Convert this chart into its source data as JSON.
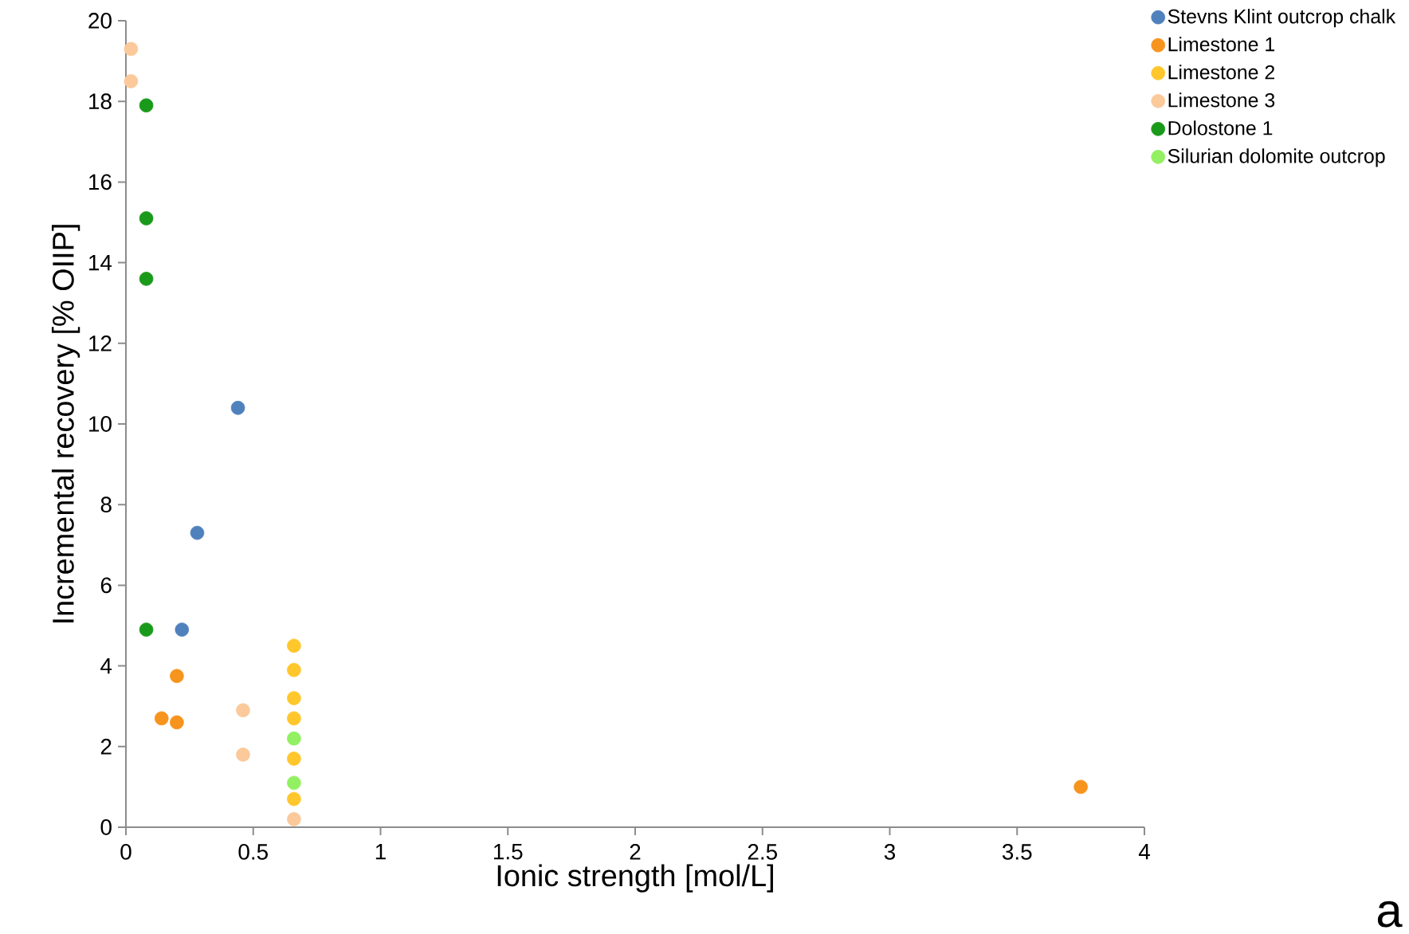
{
  "chart_data": {
    "type": "scatter",
    "xlabel": "Ionic strength [mol/L]",
    "ylabel": "Incremental recovery [% OIIP]",
    "xlim": [
      0,
      4
    ],
    "ylim": [
      0,
      20
    ],
    "xticks": [
      0,
      0.5,
      1,
      1.5,
      2,
      2.5,
      3,
      3.5,
      4
    ],
    "yticks": [
      0,
      2,
      4,
      6,
      8,
      10,
      12,
      14,
      16,
      18,
      20
    ],
    "marker": "circle",
    "legend": "top right",
    "annotations": [
      "a"
    ],
    "series": [
      {
        "name": "Stevns Klint outcrop chalk",
        "color": "#4f81bd",
        "x": [
          0.44,
          0.28,
          0.22
        ],
        "values": [
          10.4,
          7.3,
          4.9
        ]
      },
      {
        "name": "Limestone 1",
        "color": "#f7941e",
        "x": [
          0.2,
          0.14,
          0.2,
          3.75
        ],
        "values": [
          3.75,
          2.7,
          2.6,
          1.0
        ]
      },
      {
        "name": "Limestone 2",
        "color": "#ffc72c",
        "x": [
          0.66,
          0.66,
          0.66,
          0.66,
          0.66,
          0.66
        ],
        "values": [
          4.5,
          3.9,
          3.2,
          2.7,
          1.7,
          0.7
        ]
      },
      {
        "name": "Limestone 3",
        "color": "#fbc99a",
        "x": [
          0.02,
          0.02,
          0.46,
          0.46,
          0.66
        ],
        "values": [
          19.3,
          18.5,
          2.9,
          1.8,
          0.2
        ]
      },
      {
        "name": "Dolostone 1",
        "color": "#1a9a1a",
        "x": [
          0.08,
          0.08,
          0.08,
          0.08
        ],
        "values": [
          17.9,
          15.1,
          13.6,
          4.9
        ]
      },
      {
        "name": "Silurian dolomite outcrop",
        "color": "#92f062",
        "x": [
          0.66,
          0.66
        ],
        "values": [
          2.2,
          1.1
        ]
      }
    ]
  }
}
